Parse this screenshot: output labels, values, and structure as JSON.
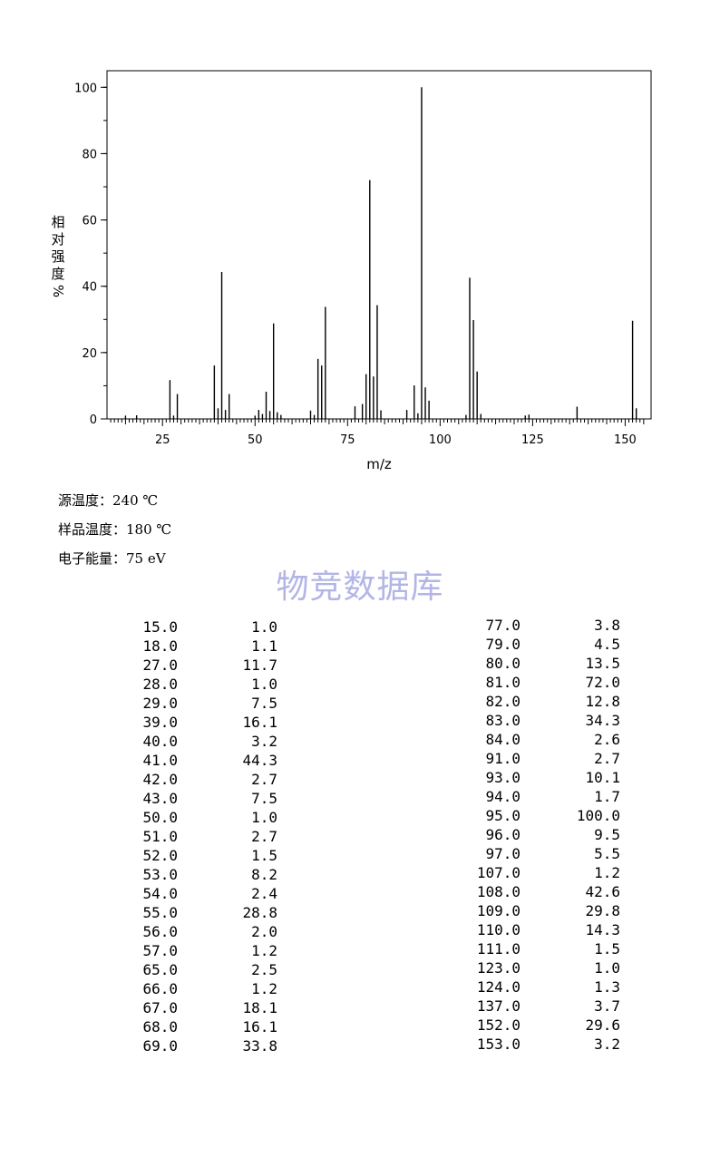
{
  "chart_data": {
    "type": "bar",
    "xlabel": "m/z",
    "ylabel": "相对强度 %",
    "xlim": [
      10,
      157
    ],
    "ylim": [
      0,
      105
    ],
    "x_ticks": [
      25,
      50,
      75,
      100,
      125,
      150
    ],
    "y_ticks": [
      0,
      20,
      40,
      60,
      80,
      100
    ],
    "grid": false,
    "peaks": [
      {
        "mz": 15,
        "intensity": 1.0
      },
      {
        "mz": 18,
        "intensity": 1.1
      },
      {
        "mz": 27,
        "intensity": 11.7
      },
      {
        "mz": 28,
        "intensity": 1.0
      },
      {
        "mz": 29,
        "intensity": 7.5
      },
      {
        "mz": 39,
        "intensity": 16.1
      },
      {
        "mz": 40,
        "intensity": 3.2
      },
      {
        "mz": 41,
        "intensity": 44.3
      },
      {
        "mz": 42,
        "intensity": 2.7
      },
      {
        "mz": 43,
        "intensity": 7.5
      },
      {
        "mz": 50,
        "intensity": 1.0
      },
      {
        "mz": 51,
        "intensity": 2.7
      },
      {
        "mz": 52,
        "intensity": 1.5
      },
      {
        "mz": 53,
        "intensity": 8.2
      },
      {
        "mz": 54,
        "intensity": 2.4
      },
      {
        "mz": 55,
        "intensity": 28.8
      },
      {
        "mz": 56,
        "intensity": 2.0
      },
      {
        "mz": 57,
        "intensity": 1.2
      },
      {
        "mz": 65,
        "intensity": 2.5
      },
      {
        "mz": 66,
        "intensity": 1.2
      },
      {
        "mz": 67,
        "intensity": 18.1
      },
      {
        "mz": 68,
        "intensity": 16.1
      },
      {
        "mz": 69,
        "intensity": 33.8
      },
      {
        "mz": 77,
        "intensity": 3.8
      },
      {
        "mz": 79,
        "intensity": 4.5
      },
      {
        "mz": 80,
        "intensity": 13.5
      },
      {
        "mz": 81,
        "intensity": 72.0
      },
      {
        "mz": 82,
        "intensity": 12.8
      },
      {
        "mz": 83,
        "intensity": 34.3
      },
      {
        "mz": 84,
        "intensity": 2.6
      },
      {
        "mz": 91,
        "intensity": 2.7
      },
      {
        "mz": 93,
        "intensity": 10.1
      },
      {
        "mz": 94,
        "intensity": 1.7
      },
      {
        "mz": 95,
        "intensity": 100.0
      },
      {
        "mz": 96,
        "intensity": 9.5
      },
      {
        "mz": 97,
        "intensity": 5.5
      },
      {
        "mz": 107,
        "intensity": 1.2
      },
      {
        "mz": 108,
        "intensity": 42.6
      },
      {
        "mz": 109,
        "intensity": 29.8
      },
      {
        "mz": 110,
        "intensity": 14.3
      },
      {
        "mz": 111,
        "intensity": 1.5
      },
      {
        "mz": 123,
        "intensity": 1.0
      },
      {
        "mz": 124,
        "intensity": 1.3
      },
      {
        "mz": 137,
        "intensity": 3.7
      },
      {
        "mz": 152,
        "intensity": 29.6
      },
      {
        "mz": 153,
        "intensity": 3.2
      }
    ]
  },
  "y_axis_chars": [
    "相",
    "对",
    "强",
    "度",
    "%"
  ],
  "conditions": {
    "source_temp": "源温度：240 ℃",
    "sample_temp": "样品温度：180 ℃",
    "energy": "电子能量：75 eV"
  },
  "watermark": "物竞数据库",
  "peak_table": {
    "left": [
      [
        "15.0",
        "1.0"
      ],
      [
        "18.0",
        "1.1"
      ],
      [
        "27.0",
        "11.7"
      ],
      [
        "28.0",
        "1.0"
      ],
      [
        "29.0",
        "7.5"
      ],
      [
        "39.0",
        "16.1"
      ],
      [
        "40.0",
        "3.2"
      ],
      [
        "41.0",
        "44.3"
      ],
      [
        "42.0",
        "2.7"
      ],
      [
        "43.0",
        "7.5"
      ],
      [
        "50.0",
        "1.0"
      ],
      [
        "51.0",
        "2.7"
      ],
      [
        "52.0",
        "1.5"
      ],
      [
        "53.0",
        "8.2"
      ],
      [
        "54.0",
        "2.4"
      ],
      [
        "55.0",
        "28.8"
      ],
      [
        "56.0",
        "2.0"
      ],
      [
        "57.0",
        "1.2"
      ],
      [
        "65.0",
        "2.5"
      ],
      [
        "66.0",
        "1.2"
      ],
      [
        "67.0",
        "18.1"
      ],
      [
        "68.0",
        "16.1"
      ],
      [
        "69.0",
        "33.8"
      ]
    ],
    "right": [
      [
        "77.0",
        "3.8"
      ],
      [
        "79.0",
        "4.5"
      ],
      [
        "80.0",
        "13.5"
      ],
      [
        "81.0",
        "72.0"
      ],
      [
        "82.0",
        "12.8"
      ],
      [
        "83.0",
        "34.3"
      ],
      [
        "84.0",
        "2.6"
      ],
      [
        "91.0",
        "2.7"
      ],
      [
        "93.0",
        "10.1"
      ],
      [
        "94.0",
        "1.7"
      ],
      [
        "95.0",
        "100.0"
      ],
      [
        "96.0",
        "9.5"
      ],
      [
        "97.0",
        "5.5"
      ],
      [
        "107.0",
        "1.2"
      ],
      [
        "108.0",
        "42.6"
      ],
      [
        "109.0",
        "29.8"
      ],
      [
        "110.0",
        "14.3"
      ],
      [
        "111.0",
        "1.5"
      ],
      [
        "123.0",
        "1.0"
      ],
      [
        "124.0",
        "1.3"
      ],
      [
        "137.0",
        "3.7"
      ],
      [
        "152.0",
        "29.6"
      ],
      [
        "153.0",
        "3.2"
      ]
    ]
  }
}
